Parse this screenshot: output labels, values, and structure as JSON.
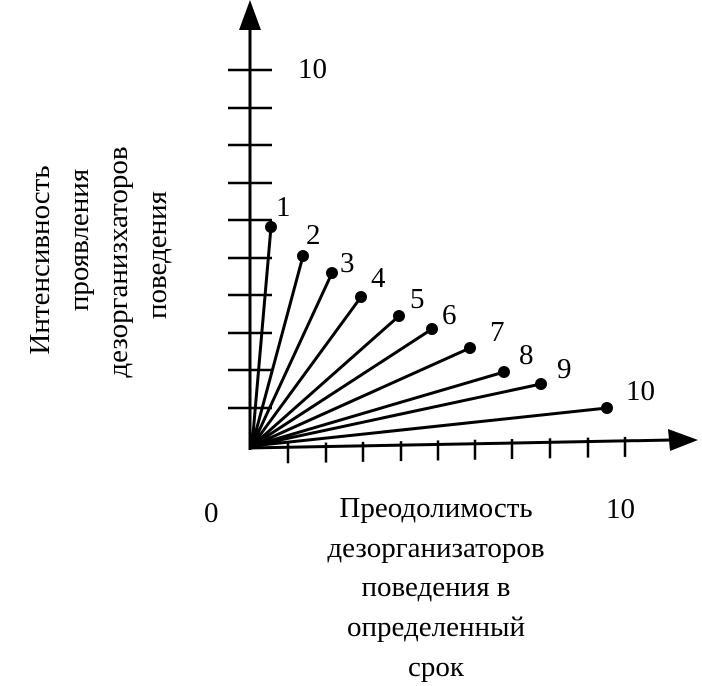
{
  "diagram": {
    "y_axis_label_lines": [
      "Интенсивность",
      "проявления",
      "дезорганизхаторов",
      "поведения"
    ],
    "x_axis_label_lines": [
      "Преодолимость",
      "дезорганизаторов",
      "поведения в",
      "определенный",
      "срок"
    ],
    "origin_label": "0",
    "y_max_label": "10",
    "x_max_label": "10",
    "colors": {
      "ink": "#000000",
      "background": "#ffffff"
    },
    "rays": [
      {
        "label": "1"
      },
      {
        "label": "2"
      },
      {
        "label": "3"
      },
      {
        "label": "4"
      },
      {
        "label": "5"
      },
      {
        "label": "6"
      },
      {
        "label": "7"
      },
      {
        "label": "8"
      },
      {
        "label": "9"
      },
      {
        "label": "10"
      }
    ]
  }
}
